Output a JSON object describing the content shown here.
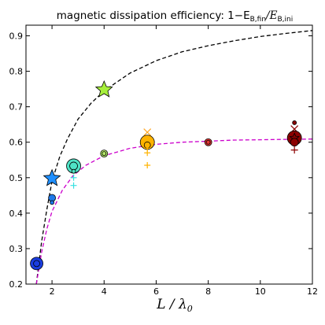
{
  "chart_data": {
    "type": "scatter",
    "title": "magnetic dissipation efficiency: 1−E",
    "title_math": {
      "sub1": "B,fin",
      "slash": "/E",
      "sub2": "B,ini"
    },
    "xlabel": "L / λ",
    "xlabel_sub": "0",
    "xlim": [
      1,
      12
    ],
    "ylim": [
      0.2,
      0.93
    ],
    "x_ticks": [
      2,
      4,
      6,
      8,
      10,
      12
    ],
    "y_ticks": [
      0.2,
      0.3,
      0.4,
      0.5,
      0.6,
      0.7,
      0.8,
      0.9
    ],
    "x_tick_labels": [
      "2",
      "4",
      "6",
      "8",
      "10",
      "12"
    ],
    "y_tick_labels": [
      "0.2",
      "0.3",
      "0.4",
      "0.5",
      "0.6",
      "0.7",
      "0.8",
      "0.9"
    ],
    "grid": false,
    "fit_curves": [
      {
        "color": "#000000",
        "style": "dashed",
        "points": [
          [
            1.4,
            0.2
          ],
          [
            1.6,
            0.32
          ],
          [
            1.8,
            0.41
          ],
          [
            2.0,
            0.49
          ],
          [
            2.3,
            0.56
          ],
          [
            2.6,
            0.61
          ],
          [
            3.0,
            0.665
          ],
          [
            3.5,
            0.71
          ],
          [
            4.0,
            0.745
          ],
          [
            5.0,
            0.795
          ],
          [
            6.0,
            0.83
          ],
          [
            7.0,
            0.855
          ],
          [
            8.0,
            0.872
          ],
          [
            9.0,
            0.886
          ],
          [
            10.0,
            0.898
          ],
          [
            11.0,
            0.907
          ],
          [
            12.0,
            0.915
          ]
        ]
      },
      {
        "color": "#cc00cc",
        "style": "dashed",
        "points": [
          [
            1.4,
            0.2
          ],
          [
            1.6,
            0.29
          ],
          [
            1.8,
            0.355
          ],
          [
            2.0,
            0.405
          ],
          [
            2.4,
            0.465
          ],
          [
            2.8,
            0.505
          ],
          [
            3.3,
            0.535
          ],
          [
            4.0,
            0.562
          ],
          [
            5.0,
            0.583
          ],
          [
            6.0,
            0.594
          ],
          [
            7.0,
            0.6
          ],
          [
            8.0,
            0.603
          ],
          [
            9.0,
            0.606
          ],
          [
            10.0,
            0.607
          ],
          [
            11.0,
            0.608
          ],
          [
            12.0,
            0.609
          ]
        ]
      }
    ],
    "points": [
      {
        "x": 1.41,
        "y": 0.258,
        "marker": "circle",
        "size": 8,
        "color": "#1a3de0"
      },
      {
        "x": 1.41,
        "y": 0.258,
        "marker": "circle",
        "size": 4,
        "color": "#1a3de0"
      },
      {
        "x": 2.0,
        "y": 0.498,
        "marker": "star",
        "size": 11,
        "color": "#1f8fff"
      },
      {
        "x": 2.0,
        "y": 0.443,
        "marker": "circle",
        "size": 4.5,
        "color": "#1f78e8"
      },
      {
        "x": 2.0,
        "y": 0.43,
        "marker": "circle",
        "size": 2.5,
        "color": "#1f78e8"
      },
      {
        "x": 2.83,
        "y": 0.533,
        "marker": "circle",
        "size": 9,
        "color": "#4fe3c6"
      },
      {
        "x": 2.83,
        "y": 0.533,
        "marker": "circle",
        "size": 5,
        "color": "#4fe3c6"
      },
      {
        "x": 2.83,
        "y": 0.5,
        "marker": "plus",
        "size": 4,
        "color": "#36e0e0"
      },
      {
        "x": 2.83,
        "y": 0.478,
        "marker": "plus",
        "size": 4,
        "color": "#36e0e0"
      },
      {
        "x": 2.83,
        "y": 0.518,
        "marker": "circle",
        "size": 2.5,
        "color": "#4fe3c6"
      },
      {
        "x": 4.0,
        "y": 0.748,
        "marker": "star",
        "size": 11,
        "color": "#a6ef3c"
      },
      {
        "x": 4.0,
        "y": 0.568,
        "marker": "circle",
        "size": 4.5,
        "color": "#b5e86a"
      },
      {
        "x": 4.0,
        "y": 0.568,
        "marker": "circle",
        "size": 2.5,
        "color": "#b5e86a"
      },
      {
        "x": 5.66,
        "y": 0.628,
        "marker": "x",
        "size": 4.5,
        "color": "#ffa726"
      },
      {
        "x": 5.66,
        "y": 0.6,
        "marker": "circle",
        "size": 9,
        "color": "#ffb300"
      },
      {
        "x": 5.66,
        "y": 0.592,
        "marker": "circle",
        "size": 4,
        "color": "#ffb300"
      },
      {
        "x": 5.66,
        "y": 0.583,
        "marker": "plus",
        "size": 4,
        "color": "#ffb300"
      },
      {
        "x": 5.66,
        "y": 0.57,
        "marker": "plus",
        "size": 4,
        "color": "#ffb300"
      },
      {
        "x": 5.66,
        "y": 0.535,
        "marker": "plus",
        "size": 4,
        "color": "#ffb300"
      },
      {
        "x": 8.0,
        "y": 0.6,
        "marker": "circle",
        "size": 4.5,
        "color": "#e53935"
      },
      {
        "x": 8.0,
        "y": 0.6,
        "marker": "circle",
        "size": 2.5,
        "color": "#e53935"
      },
      {
        "x": 11.31,
        "y": 0.655,
        "marker": "circle",
        "size": 2.5,
        "color": "#8b0000"
      },
      {
        "x": 11.31,
        "y": 0.637,
        "marker": "x",
        "size": 4.5,
        "color": "#8b0000"
      },
      {
        "x": 11.31,
        "y": 0.612,
        "marker": "circle",
        "size": 9,
        "color": "#8b0000"
      },
      {
        "x": 11.31,
        "y": 0.612,
        "marker": "star",
        "size": 6,
        "color": "#8b0000"
      },
      {
        "x": 11.31,
        "y": 0.6,
        "marker": "circle",
        "size": 5,
        "color": "#8b0000"
      },
      {
        "x": 11.31,
        "y": 0.578,
        "marker": "plus",
        "size": 4.5,
        "color": "#8b0000"
      }
    ]
  }
}
